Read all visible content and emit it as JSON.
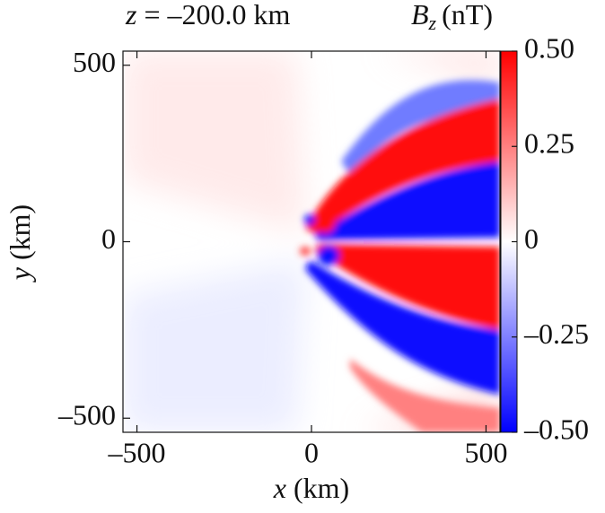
{
  "chart_data": {
    "type": "heatmap",
    "title": {
      "symbol": "z",
      "text": "= –200.0 km"
    },
    "colorbar_label": {
      "symbol": "B",
      "subscript": "z",
      "unit": "(nT)"
    },
    "x_label": {
      "symbol": "x",
      "unit": "(km)"
    },
    "y_label": {
      "symbol": "y",
      "unit": "(km)"
    },
    "xlim": [
      -540,
      540
    ],
    "ylim": [
      -540,
      540
    ],
    "xticks": [
      {
        "value": -500,
        "label": "–500"
      },
      0,
      500
    ],
    "yticks": [
      {
        "value": -500,
        "label": "–500"
      },
      0,
      500
    ],
    "clim": [
      -0.5,
      0.5
    ],
    "cticks": [
      {
        "value": 0.5,
        "label": "0.50"
      },
      0.25,
      0,
      {
        "value": -0.25,
        "label": "–0.25"
      },
      {
        "value": -0.5,
        "label": "–0.50"
      }
    ],
    "colormap": [
      "#0000ff",
      "#ffffff",
      "#ff0000"
    ]
  }
}
